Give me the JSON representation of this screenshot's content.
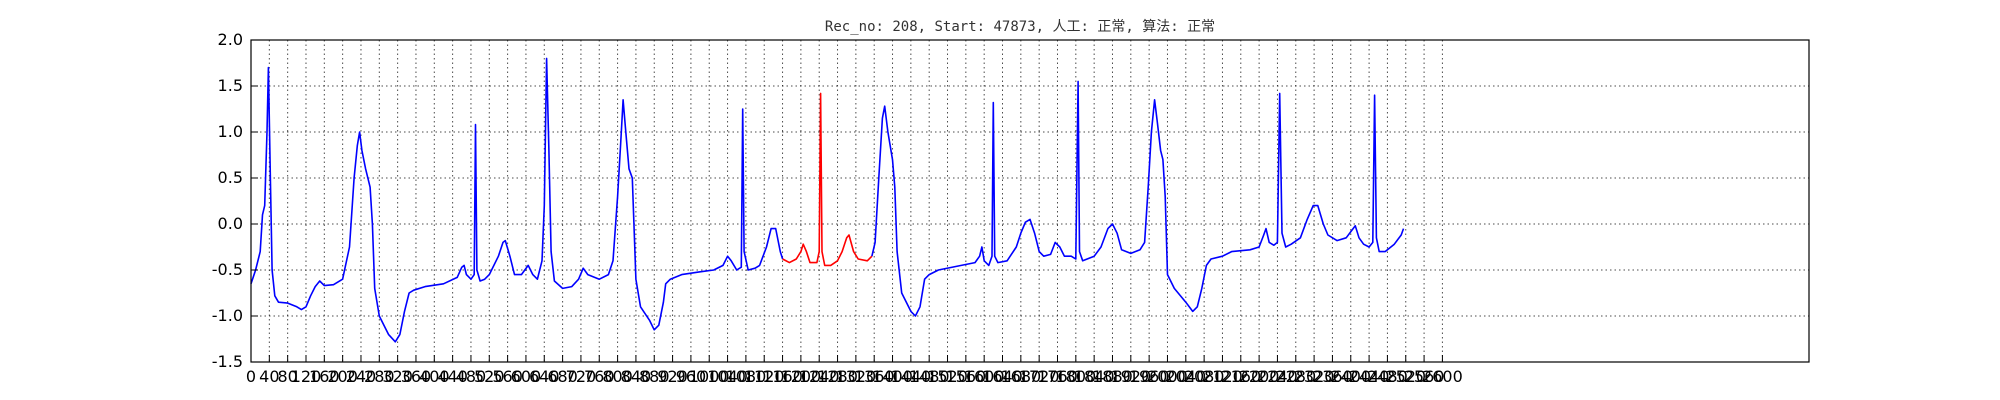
{
  "chart_data": {
    "type": "line",
    "title": "Rec_no: 208, Start: 47873, 人工: 正常, 算法: 正常",
    "xlabel": "",
    "ylabel": "",
    "xlim": [
      0,
      3400
    ],
    "ylim": [
      -1.5,
      2.0
    ],
    "grid": true,
    "x_tick_labels": [
      "0",
      "40",
      "80",
      "120",
      "160",
      "200",
      "240",
      "280",
      "320",
      "360",
      "400",
      "440",
      "480",
      "520",
      "560",
      "600",
      "640",
      "680",
      "720",
      "760",
      "800",
      "840",
      "880",
      "920",
      "960",
      "1000",
      "1040",
      "1080",
      "1120",
      "1160",
      "1200",
      "1240",
      "1280",
      "1320",
      "1360",
      "1400",
      "1440",
      "1480",
      "1520",
      "1560",
      "1600",
      "1640",
      "1680",
      "1720",
      "1760",
      "1800",
      "1840",
      "1880",
      "1920",
      "1960",
      "2000",
      "2040",
      "2080",
      "2120",
      "2160",
      "2200",
      "2240",
      "2280",
      "2320",
      "2360",
      "2400",
      "2440",
      "2480",
      "2520",
      "2560",
      "2600"
    ],
    "y_tick_labels": [
      "2.0",
      "1.5",
      "1.0",
      "0.5",
      "0.0",
      "-0.5",
      "-1.0",
      "-1.5"
    ],
    "series": [
      {
        "color": "#0000ff",
        "points": [
          [
            0,
            -0.65
          ],
          [
            10,
            -0.5
          ],
          [
            20,
            -0.3
          ],
          [
            25,
            0.1
          ],
          [
            30,
            0.2
          ],
          [
            35,
            1.0
          ],
          [
            38,
            1.7
          ],
          [
            42,
            0.6
          ],
          [
            46,
            -0.5
          ],
          [
            52,
            -0.78
          ],
          [
            60,
            -0.85
          ],
          [
            80,
            -0.86
          ],
          [
            100,
            -0.9
          ],
          [
            110,
            -0.93
          ],
          [
            120,
            -0.9
          ],
          [
            130,
            -0.78
          ],
          [
            140,
            -0.68
          ],
          [
            150,
            -0.62
          ],
          [
            160,
            -0.67
          ],
          [
            180,
            -0.66
          ],
          [
            200,
            -0.6
          ],
          [
            215,
            -0.25
          ],
          [
            225,
            0.5
          ],
          [
            232,
            0.85
          ],
          [
            237,
            1.0
          ],
          [
            242,
            0.8
          ],
          [
            250,
            0.6
          ],
          [
            260,
            0.4
          ],
          [
            265,
            0.0
          ],
          [
            270,
            -0.7
          ],
          [
            280,
            -1.0
          ],
          [
            300,
            -1.2
          ],
          [
            315,
            -1.28
          ],
          [
            325,
            -1.2
          ],
          [
            335,
            -0.95
          ],
          [
            345,
            -0.75
          ],
          [
            355,
            -0.72
          ],
          [
            380,
            -0.68
          ],
          [
            420,
            -0.65
          ],
          [
            450,
            -0.58
          ],
          [
            460,
            -0.47
          ],
          [
            465,
            -0.45
          ],
          [
            470,
            -0.55
          ],
          [
            480,
            -0.6
          ],
          [
            487,
            -0.55
          ],
          [
            490,
            1.08
          ],
          [
            493,
            -0.5
          ],
          [
            500,
            -0.62
          ],
          [
            510,
            -0.6
          ],
          [
            520,
            -0.55
          ],
          [
            540,
            -0.35
          ],
          [
            550,
            -0.2
          ],
          [
            555,
            -0.18
          ],
          [
            565,
            -0.35
          ],
          [
            575,
            -0.55
          ],
          [
            590,
            -0.55
          ],
          [
            605,
            -0.45
          ],
          [
            615,
            -0.55
          ],
          [
            625,
            -0.6
          ],
          [
            635,
            -0.4
          ],
          [
            640,
            0.2
          ],
          [
            645,
            1.8
          ],
          [
            650,
            0.8
          ],
          [
            655,
            -0.3
          ],
          [
            662,
            -0.62
          ],
          [
            680,
            -0.7
          ],
          [
            700,
            -0.68
          ],
          [
            715,
            -0.6
          ],
          [
            725,
            -0.48
          ],
          [
            735,
            -0.55
          ],
          [
            760,
            -0.6
          ],
          [
            780,
            -0.55
          ],
          [
            790,
            -0.4
          ],
          [
            800,
            0.3
          ],
          [
            807,
            0.9
          ],
          [
            812,
            1.35
          ],
          [
            818,
            1.0
          ],
          [
            825,
            0.6
          ],
          [
            832,
            0.5
          ],
          [
            840,
            -0.6
          ],
          [
            850,
            -0.9
          ],
          [
            870,
            -1.05
          ],
          [
            880,
            -1.15
          ],
          [
            890,
            -1.1
          ],
          [
            900,
            -0.85
          ],
          [
            905,
            -0.65
          ],
          [
            915,
            -0.6
          ],
          [
            940,
            -0.55
          ],
          [
            980,
            -0.52
          ],
          [
            1010,
            -0.5
          ],
          [
            1030,
            -0.45
          ],
          [
            1040,
            -0.35
          ],
          [
            1048,
            -0.4
          ],
          [
            1060,
            -0.5
          ],
          [
            1070,
            -0.47
          ],
          [
            1073,
            1.25
          ],
          [
            1076,
            -0.3
          ],
          [
            1085,
            -0.5
          ],
          [
            1100,
            -0.48
          ],
          [
            1110,
            -0.45
          ],
          [
            1125,
            -0.25
          ],
          [
            1135,
            -0.05
          ],
          [
            1145,
            -0.05
          ],
          [
            1155,
            -0.3
          ],
          [
            1160,
            -0.38
          ]
        ]
      },
      {
        "color": "#ff0000",
        "points": [
          [
            1160,
            -0.38
          ],
          [
            1175,
            -0.42
          ],
          [
            1190,
            -0.38
          ],
          [
            1200,
            -0.3
          ],
          [
            1205,
            -0.22
          ],
          [
            1212,
            -0.3
          ],
          [
            1220,
            -0.42
          ],
          [
            1235,
            -0.42
          ],
          [
            1240,
            -0.3
          ],
          [
            1243,
            1.42
          ],
          [
            1246,
            -0.3
          ],
          [
            1252,
            -0.45
          ],
          [
            1265,
            -0.45
          ],
          [
            1280,
            -0.4
          ],
          [
            1290,
            -0.3
          ],
          [
            1300,
            -0.15
          ],
          [
            1305,
            -0.12
          ],
          [
            1315,
            -0.3
          ],
          [
            1325,
            -0.38
          ],
          [
            1345,
            -0.4
          ],
          [
            1355,
            -0.35
          ]
        ]
      },
      {
        "color": "#0000ff",
        "points": [
          [
            1355,
            -0.35
          ],
          [
            1362,
            -0.2
          ],
          [
            1370,
            0.5
          ],
          [
            1378,
            1.15
          ],
          [
            1383,
            1.28
          ],
          [
            1390,
            1.0
          ],
          [
            1400,
            0.7
          ],
          [
            1405,
            0.4
          ],
          [
            1410,
            -0.3
          ],
          [
            1420,
            -0.75
          ],
          [
            1440,
            -0.95
          ],
          [
            1450,
            -1.0
          ],
          [
            1460,
            -0.9
          ],
          [
            1470,
            -0.6
          ],
          [
            1480,
            -0.55
          ],
          [
            1500,
            -0.5
          ],
          [
            1550,
            -0.45
          ],
          [
            1580,
            -0.42
          ],
          [
            1590,
            -0.35
          ],
          [
            1595,
            -0.25
          ],
          [
            1600,
            -0.4
          ],
          [
            1610,
            -0.45
          ],
          [
            1617,
            -0.35
          ],
          [
            1620,
            1.32
          ],
          [
            1623,
            -0.35
          ],
          [
            1630,
            -0.42
          ],
          [
            1650,
            -0.4
          ],
          [
            1670,
            -0.25
          ],
          [
            1680,
            -0.1
          ],
          [
            1690,
            0.02
          ],
          [
            1700,
            0.05
          ],
          [
            1710,
            -0.1
          ],
          [
            1720,
            -0.3
          ],
          [
            1730,
            -0.35
          ],
          [
            1745,
            -0.33
          ],
          [
            1755,
            -0.2
          ],
          [
            1765,
            -0.25
          ],
          [
            1775,
            -0.35
          ],
          [
            1790,
            -0.35
          ],
          [
            1800,
            -0.38
          ],
          [
            1805,
            1.55
          ],
          [
            1808,
            -0.3
          ],
          [
            1815,
            -0.4
          ],
          [
            1840,
            -0.35
          ],
          [
            1855,
            -0.25
          ],
          [
            1870,
            -0.05
          ],
          [
            1880,
            0.0
          ],
          [
            1890,
            -0.1
          ],
          [
            1900,
            -0.28
          ],
          [
            1920,
            -0.32
          ],
          [
            1940,
            -0.28
          ],
          [
            1950,
            -0.2
          ],
          [
            1958,
            0.4
          ],
          [
            1965,
            1.0
          ],
          [
            1972,
            1.35
          ],
          [
            1978,
            1.1
          ],
          [
            1985,
            0.8
          ],
          [
            1990,
            0.7
          ],
          [
            1995,
            0.3
          ],
          [
            2000,
            -0.55
          ],
          [
            2015,
            -0.7
          ],
          [
            2040,
            -0.85
          ],
          [
            2055,
            -0.95
          ],
          [
            2065,
            -0.9
          ],
          [
            2075,
            -0.7
          ],
          [
            2085,
            -0.45
          ],
          [
            2095,
            -0.38
          ],
          [
            2120,
            -0.35
          ],
          [
            2140,
            -0.3
          ],
          [
            2180,
            -0.28
          ],
          [
            2200,
            -0.25
          ],
          [
            2210,
            -0.12
          ],
          [
            2215,
            -0.05
          ],
          [
            2222,
            -0.2
          ],
          [
            2232,
            -0.23
          ],
          [
            2240,
            -0.2
          ],
          [
            2245,
            1.42
          ],
          [
            2250,
            -0.1
          ],
          [
            2258,
            -0.25
          ],
          [
            2270,
            -0.22
          ],
          [
            2290,
            -0.15
          ],
          [
            2305,
            0.05
          ],
          [
            2318,
            0.2
          ],
          [
            2328,
            0.2
          ],
          [
            2340,
            0.0
          ],
          [
            2350,
            -0.12
          ],
          [
            2370,
            -0.18
          ],
          [
            2390,
            -0.15
          ],
          [
            2405,
            -0.05
          ],
          [
            2410,
            -0.02
          ],
          [
            2418,
            -0.15
          ],
          [
            2428,
            -0.22
          ],
          [
            2440,
            -0.25
          ],
          [
            2448,
            -0.2
          ],
          [
            2452,
            1.4
          ],
          [
            2456,
            -0.15
          ],
          [
            2462,
            -0.3
          ],
          [
            2475,
            -0.3
          ],
          [
            2495,
            -0.22
          ],
          [
            2510,
            -0.12
          ],
          [
            2515,
            -0.05
          ]
        ]
      }
    ]
  }
}
